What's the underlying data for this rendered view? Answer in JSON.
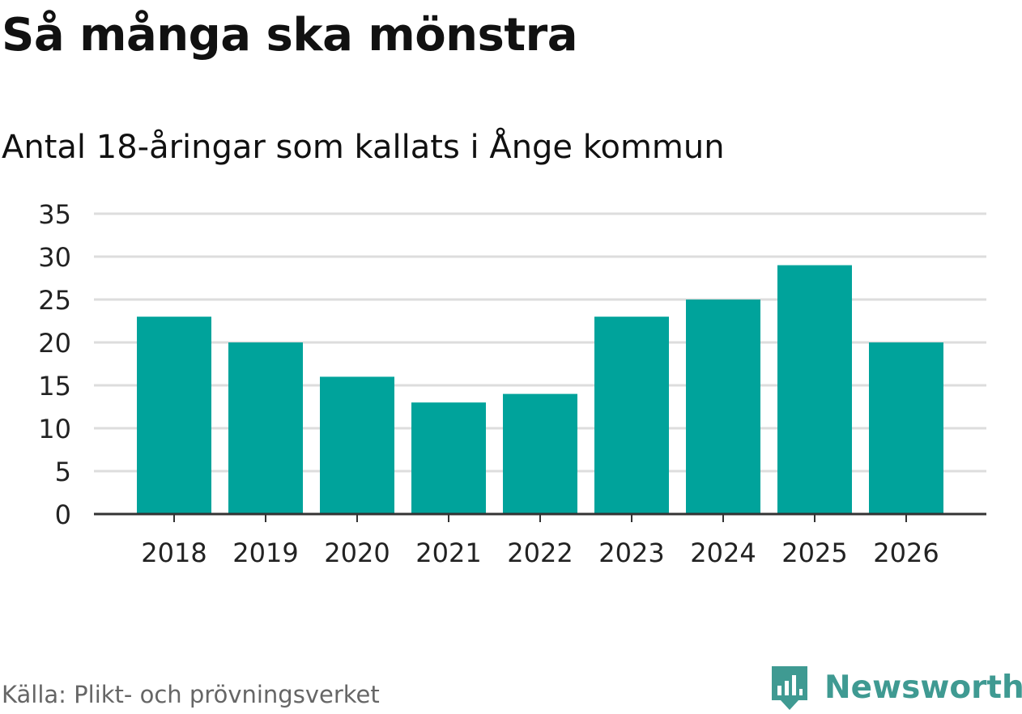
{
  "header": {
    "title": "Så många ska mönstra",
    "subtitle": "Antal 18-åringar som kallats i Ånge kommun"
  },
  "footer": {
    "source": "Källa: Plikt- och prövningsverket",
    "brand_name": "Newsworthy",
    "brand_icon": "newsworthy-logo-icon"
  },
  "colors": {
    "bar": "#00a39b",
    "gridline": "#dddddd",
    "baseline": "#333333",
    "brand": "#3f9a92",
    "tick_text": "#222222"
  },
  "chart_data": {
    "type": "bar",
    "categories": [
      "2018",
      "2019",
      "2020",
      "2021",
      "2022",
      "2023",
      "2024",
      "2025",
      "2026"
    ],
    "values": [
      23,
      20,
      16,
      13,
      14,
      23,
      25,
      29,
      20
    ],
    "ylim": [
      0,
      35
    ],
    "yticks": [
      "0",
      "5",
      "10",
      "15",
      "20",
      "25",
      "30",
      "35"
    ],
    "title": "Så många ska mönstra",
    "subtitle": "Antal 18-åringar som kallats i Ånge kommun",
    "xlabel": "",
    "ylabel": "",
    "grid": true,
    "legend": "none"
  }
}
